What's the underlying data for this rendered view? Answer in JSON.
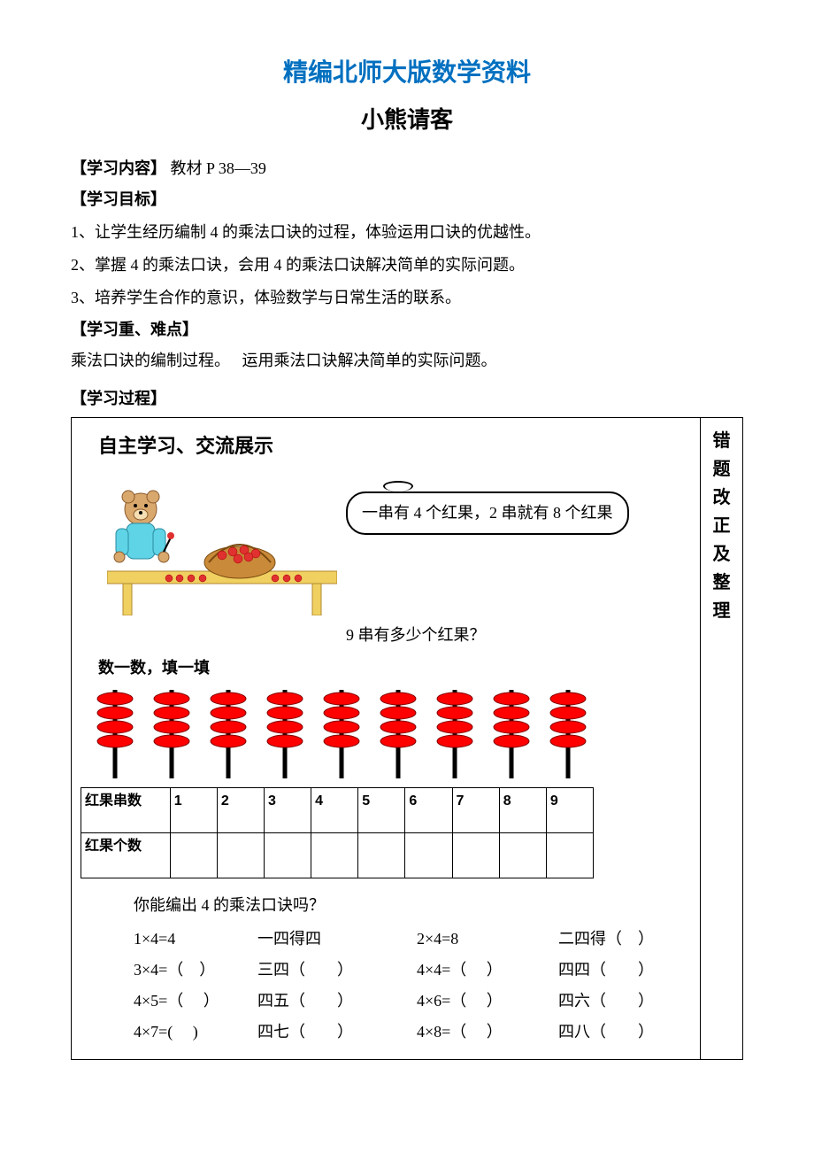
{
  "header": {
    "title_main": "精编北师大版数学资料",
    "title_sub": "小熊请客"
  },
  "sections": {
    "content_label": "【学习内容】",
    "content_text": "教材 P 38—39",
    "goal_label": "【学习目标】",
    "goals": [
      "1、让学生经历编制 4 的乘法口诀的过程，体验运用口诀的优越性。",
      "2、掌握 4 的乘法口诀，会用 4 的乘法口诀解决简单的实际问题。",
      "3、培养学生合作的意识，体验数学与日常生活的联系。"
    ],
    "keypoint_label": "【学习重、难点】",
    "keypoint_text": "乘法口诀的编制过程。　 运用乘法口诀解决简单的实际问题。",
    "process_label": "【学习过程】"
  },
  "table": {
    "right_header": "错题改正及整理",
    "section_heading": "自主学习、交流展示",
    "speech": "一串有 4 个红果，2 串就有 8 个红果",
    "question": "9 串有多少个红果？",
    "count_title": "数一数，填一填",
    "sticks": {
      "count": 9,
      "berries_per_stick": 4,
      "berry_color": "#ff0000",
      "stick_color": "#000000"
    },
    "fruit_table": {
      "row1_label": "红果串数",
      "row1_values": [
        "1",
        "2",
        "3",
        "4",
        "5",
        "6",
        "7",
        "8",
        "9"
      ],
      "row2_label": "红果个数",
      "row2_values": [
        "",
        "",
        "",
        "",
        "",
        "",
        "",
        "",
        ""
      ]
    },
    "koujue": {
      "question": "你能编出 4 的乘法口诀吗？",
      "rows": [
        {
          "eq1": "1×4=4",
          "w1": "一四得四",
          "eq2": "2×4=8",
          "w2": "二四得（　）"
        },
        {
          "eq1": "3×4=（　）",
          "w1": "三四（　　）",
          "eq2": "4×4=（　 ）",
          "w2": "四四（　　）"
        },
        {
          "eq1": "4×5=（　 ）",
          "w1": "四五（　　）",
          "eq2": "4×6=（　 ）",
          "w2": "四六（　　）"
        },
        {
          "eq1": "4×7=(　  )",
          "w1": "四七（　　）",
          "eq2": "4×8=（　 ）",
          "w2": "四八（　　）"
        }
      ]
    }
  },
  "bear_svg": {
    "bear_body": "#d9a86c",
    "bear_dark": "#8a5a2e",
    "shirt": "#5fd4e6",
    "table_color": "#f0d060",
    "basket": "#c98a3a",
    "berries": "#e03030"
  }
}
